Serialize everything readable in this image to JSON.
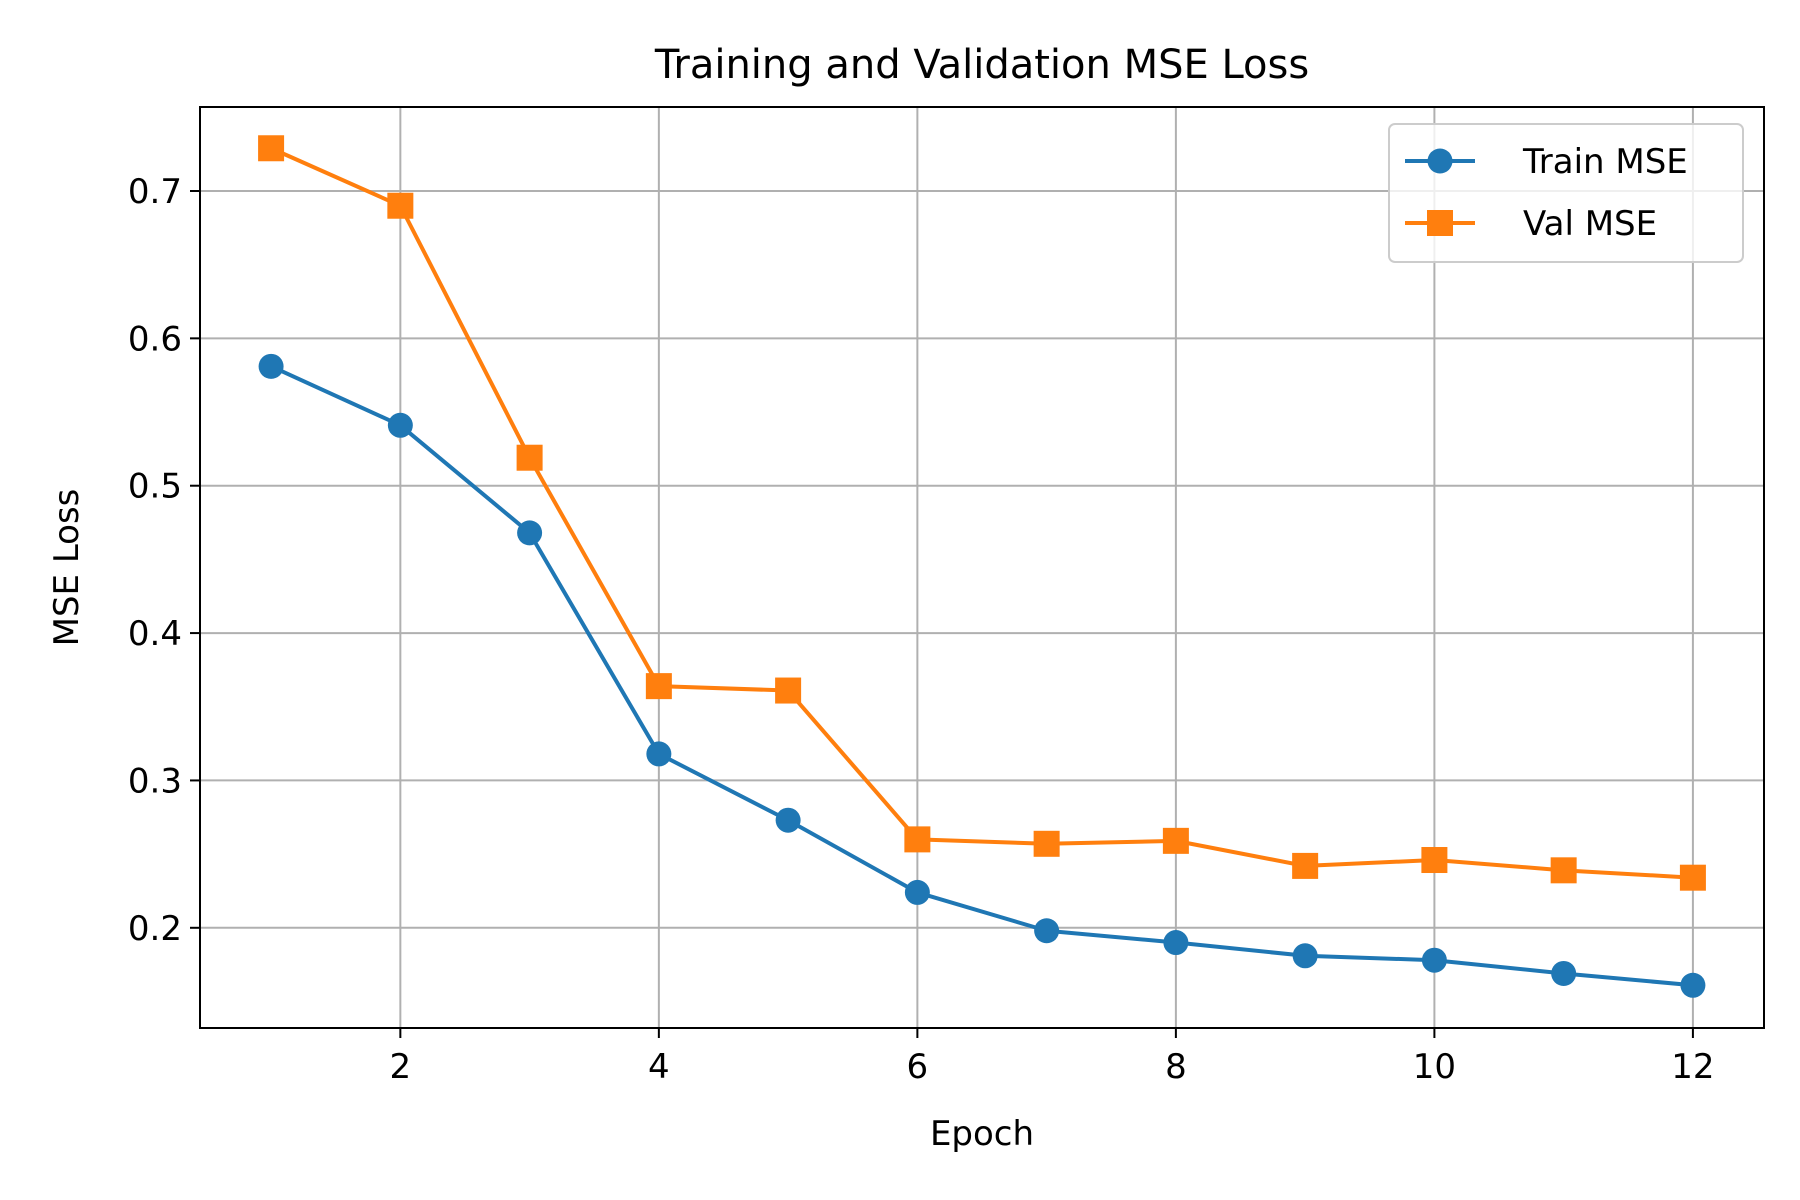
{
  "chart_data": {
    "type": "line",
    "title": "Training and Validation MSE Loss",
    "xlabel": "Epoch",
    "ylabel": "MSE Loss",
    "x": [
      1,
      2,
      3,
      4,
      5,
      6,
      7,
      8,
      9,
      10,
      11,
      12
    ],
    "xlim": [
      0.45,
      12.55
    ],
    "ylim": [
      0.132,
      0.757
    ],
    "xticks": [
      2,
      4,
      6,
      8,
      10,
      12
    ],
    "yticks": [
      0.2,
      0.3,
      0.4,
      0.5,
      0.6,
      0.7
    ],
    "xtick_labels": [
      "2",
      "4",
      "6",
      "8",
      "10",
      "12"
    ],
    "ytick_labels": [
      "0.2",
      "0.3",
      "0.4",
      "0.5",
      "0.6",
      "0.7"
    ],
    "grid": true,
    "legend_position": "top-right",
    "series": [
      {
        "name": "Train MSE",
        "color": "#1f77b4",
        "marker": "circle",
        "values": [
          0.581,
          0.541,
          0.468,
          0.318,
          0.273,
          0.224,
          0.198,
          0.19,
          0.181,
          0.178,
          0.169,
          0.161
        ]
      },
      {
        "name": "Val MSE",
        "color": "#ff7f0e",
        "marker": "square",
        "values": [
          0.729,
          0.69,
          0.519,
          0.364,
          0.361,
          0.26,
          0.257,
          0.259,
          0.242,
          0.246,
          0.239,
          0.234
        ]
      }
    ]
  }
}
